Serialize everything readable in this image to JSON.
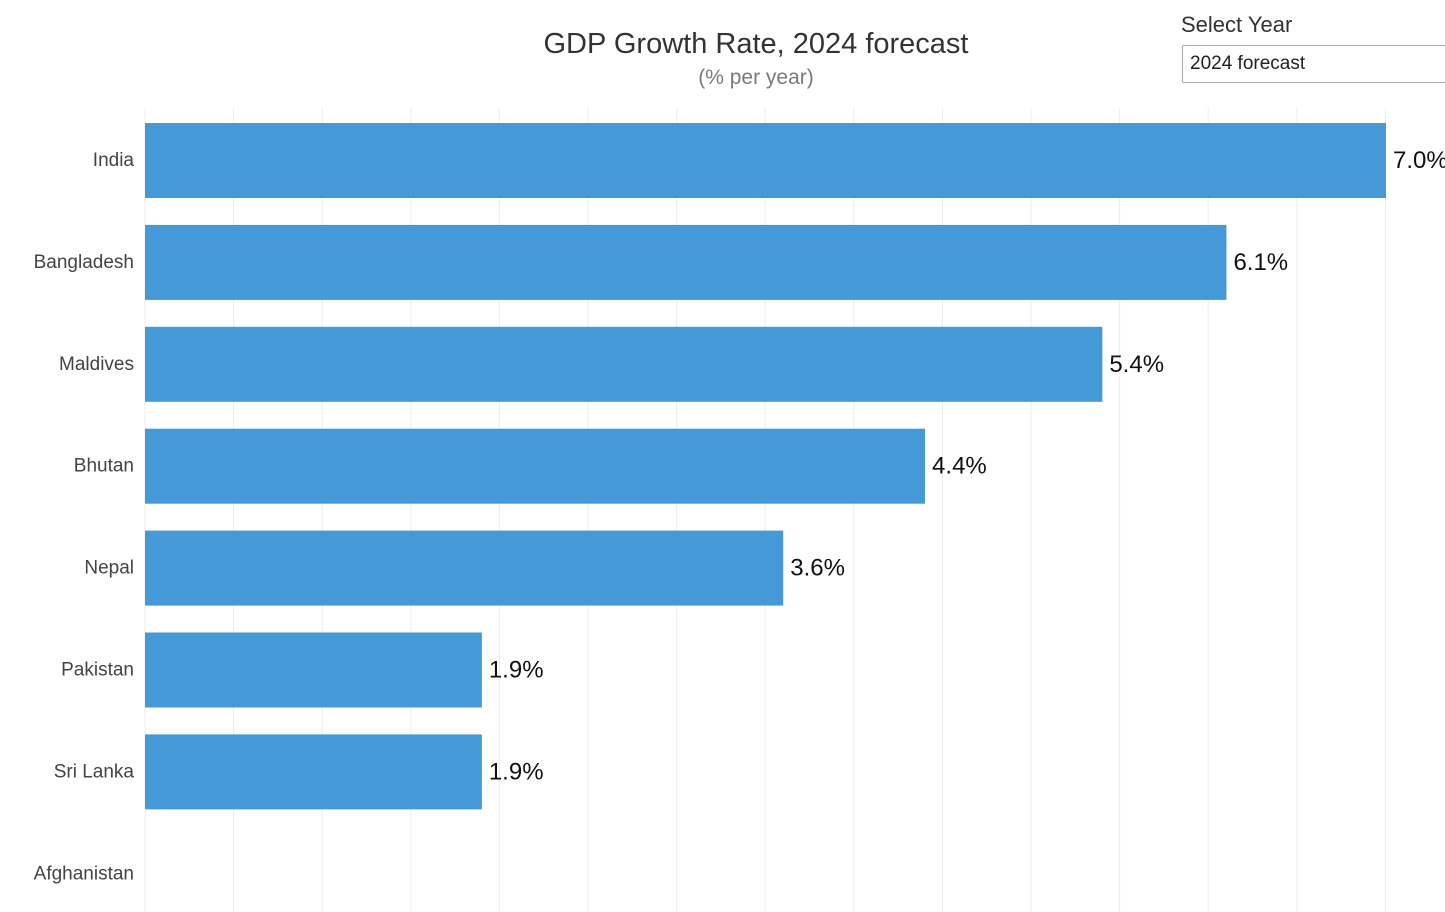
{
  "header": {
    "title": "GDP Growth Rate, 2024 forecast",
    "subtitle": "(% per year)"
  },
  "controls": {
    "year_label": "Select Year",
    "year_selected": "2024 forecast"
  },
  "colors": {
    "bar": "#4499d6",
    "grid": "#ececec",
    "category_text": "#444444",
    "value_text": "#111111"
  },
  "chart_data": {
    "type": "bar",
    "orientation": "horizontal",
    "title": "GDP Growth Rate, 2024 forecast",
    "subtitle": "(% per year)",
    "categories": [
      "India",
      "Bangladesh",
      "Maldives",
      "Bhutan",
      "Nepal",
      "Pakistan",
      "Sri Lanka",
      "Afghanistan"
    ],
    "values": [
      7.0,
      6.1,
      5.4,
      4.4,
      3.6,
      1.9,
      1.9,
      null
    ],
    "data_labels": [
      "7.0%",
      "6.1%",
      "5.4%",
      "4.4%",
      "3.6%",
      "1.9%",
      "1.9%",
      ""
    ],
    "xlim": [
      0,
      7.0
    ],
    "grid": true,
    "xaxis_tick_labels_visible": false
  }
}
